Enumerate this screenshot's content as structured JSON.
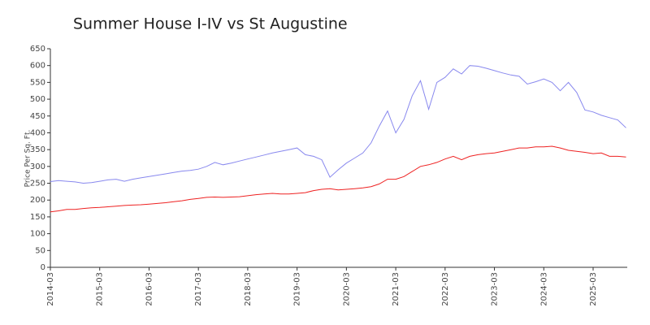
{
  "chart_data": {
    "type": "line",
    "title": "Summer House I-IV vs St Augustine",
    "y_label": "Price Per Sq. Ft.",
    "categories": [
      "2014-03",
      null,
      null,
      null,
      null,
      null,
      "2015-03",
      null,
      null,
      null,
      null,
      null,
      "2016-03",
      null,
      null,
      null,
      null,
      null,
      "2017-03",
      null,
      null,
      null,
      null,
      null,
      "2018-03",
      null,
      null,
      null,
      null,
      null,
      "2019-03",
      null,
      null,
      null,
      null,
      null,
      "2020-03",
      null,
      null,
      null,
      null,
      null,
      "2021-03",
      null,
      null,
      null,
      null,
      null,
      "2022-03",
      null,
      null,
      null,
      null,
      null,
      "2023-03",
      null,
      null,
      null,
      null,
      null,
      "2024-03",
      null,
      null,
      null,
      null,
      null,
      "2025-03",
      null,
      null,
      null,
      null
    ],
    "series": [
      {
        "color": "#8888ee",
        "values": [
          255,
          258,
          256,
          254,
          250,
          252,
          256,
          260,
          262,
          256,
          262,
          266,
          270,
          274,
          278,
          282,
          286,
          288,
          292,
          300,
          312,
          305,
          310,
          316,
          322,
          328,
          334,
          340,
          345,
          350,
          355,
          335,
          330,
          320,
          268,
          290,
          310,
          325,
          340,
          370,
          420,
          465,
          400,
          440,
          510,
          555,
          470,
          550,
          565,
          590,
          575,
          600,
          598,
          592,
          585,
          578,
          572,
          568,
          545,
          552,
          560,
          550,
          525,
          550,
          520,
          468,
          462,
          452,
          445,
          438,
          415
        ]
      },
      {
        "color": "#ee2222",
        "values": [
          165,
          168,
          172,
          172,
          175,
          177,
          178,
          180,
          182,
          184,
          185,
          186,
          188,
          190,
          192,
          195,
          198,
          202,
          205,
          208,
          209,
          208,
          209,
          210,
          213,
          216,
          218,
          220,
          218,
          218,
          220,
          222,
          228,
          232,
          234,
          230,
          232,
          234,
          236,
          240,
          248,
          262,
          262,
          270,
          285,
          300,
          305,
          312,
          322,
          330,
          320,
          330,
          335,
          338,
          340,
          345,
          350,
          355,
          355,
          358,
          358,
          360,
          355,
          348,
          345,
          342,
          338,
          340,
          330,
          330,
          328
        ]
      }
    ],
    "ylim": [
      0,
      650
    ],
    "yticks": [
      0,
      50,
      100,
      150,
      200,
      250,
      300,
      350,
      400,
      450,
      500,
      550,
      600,
      650
    ],
    "grid": false
  }
}
